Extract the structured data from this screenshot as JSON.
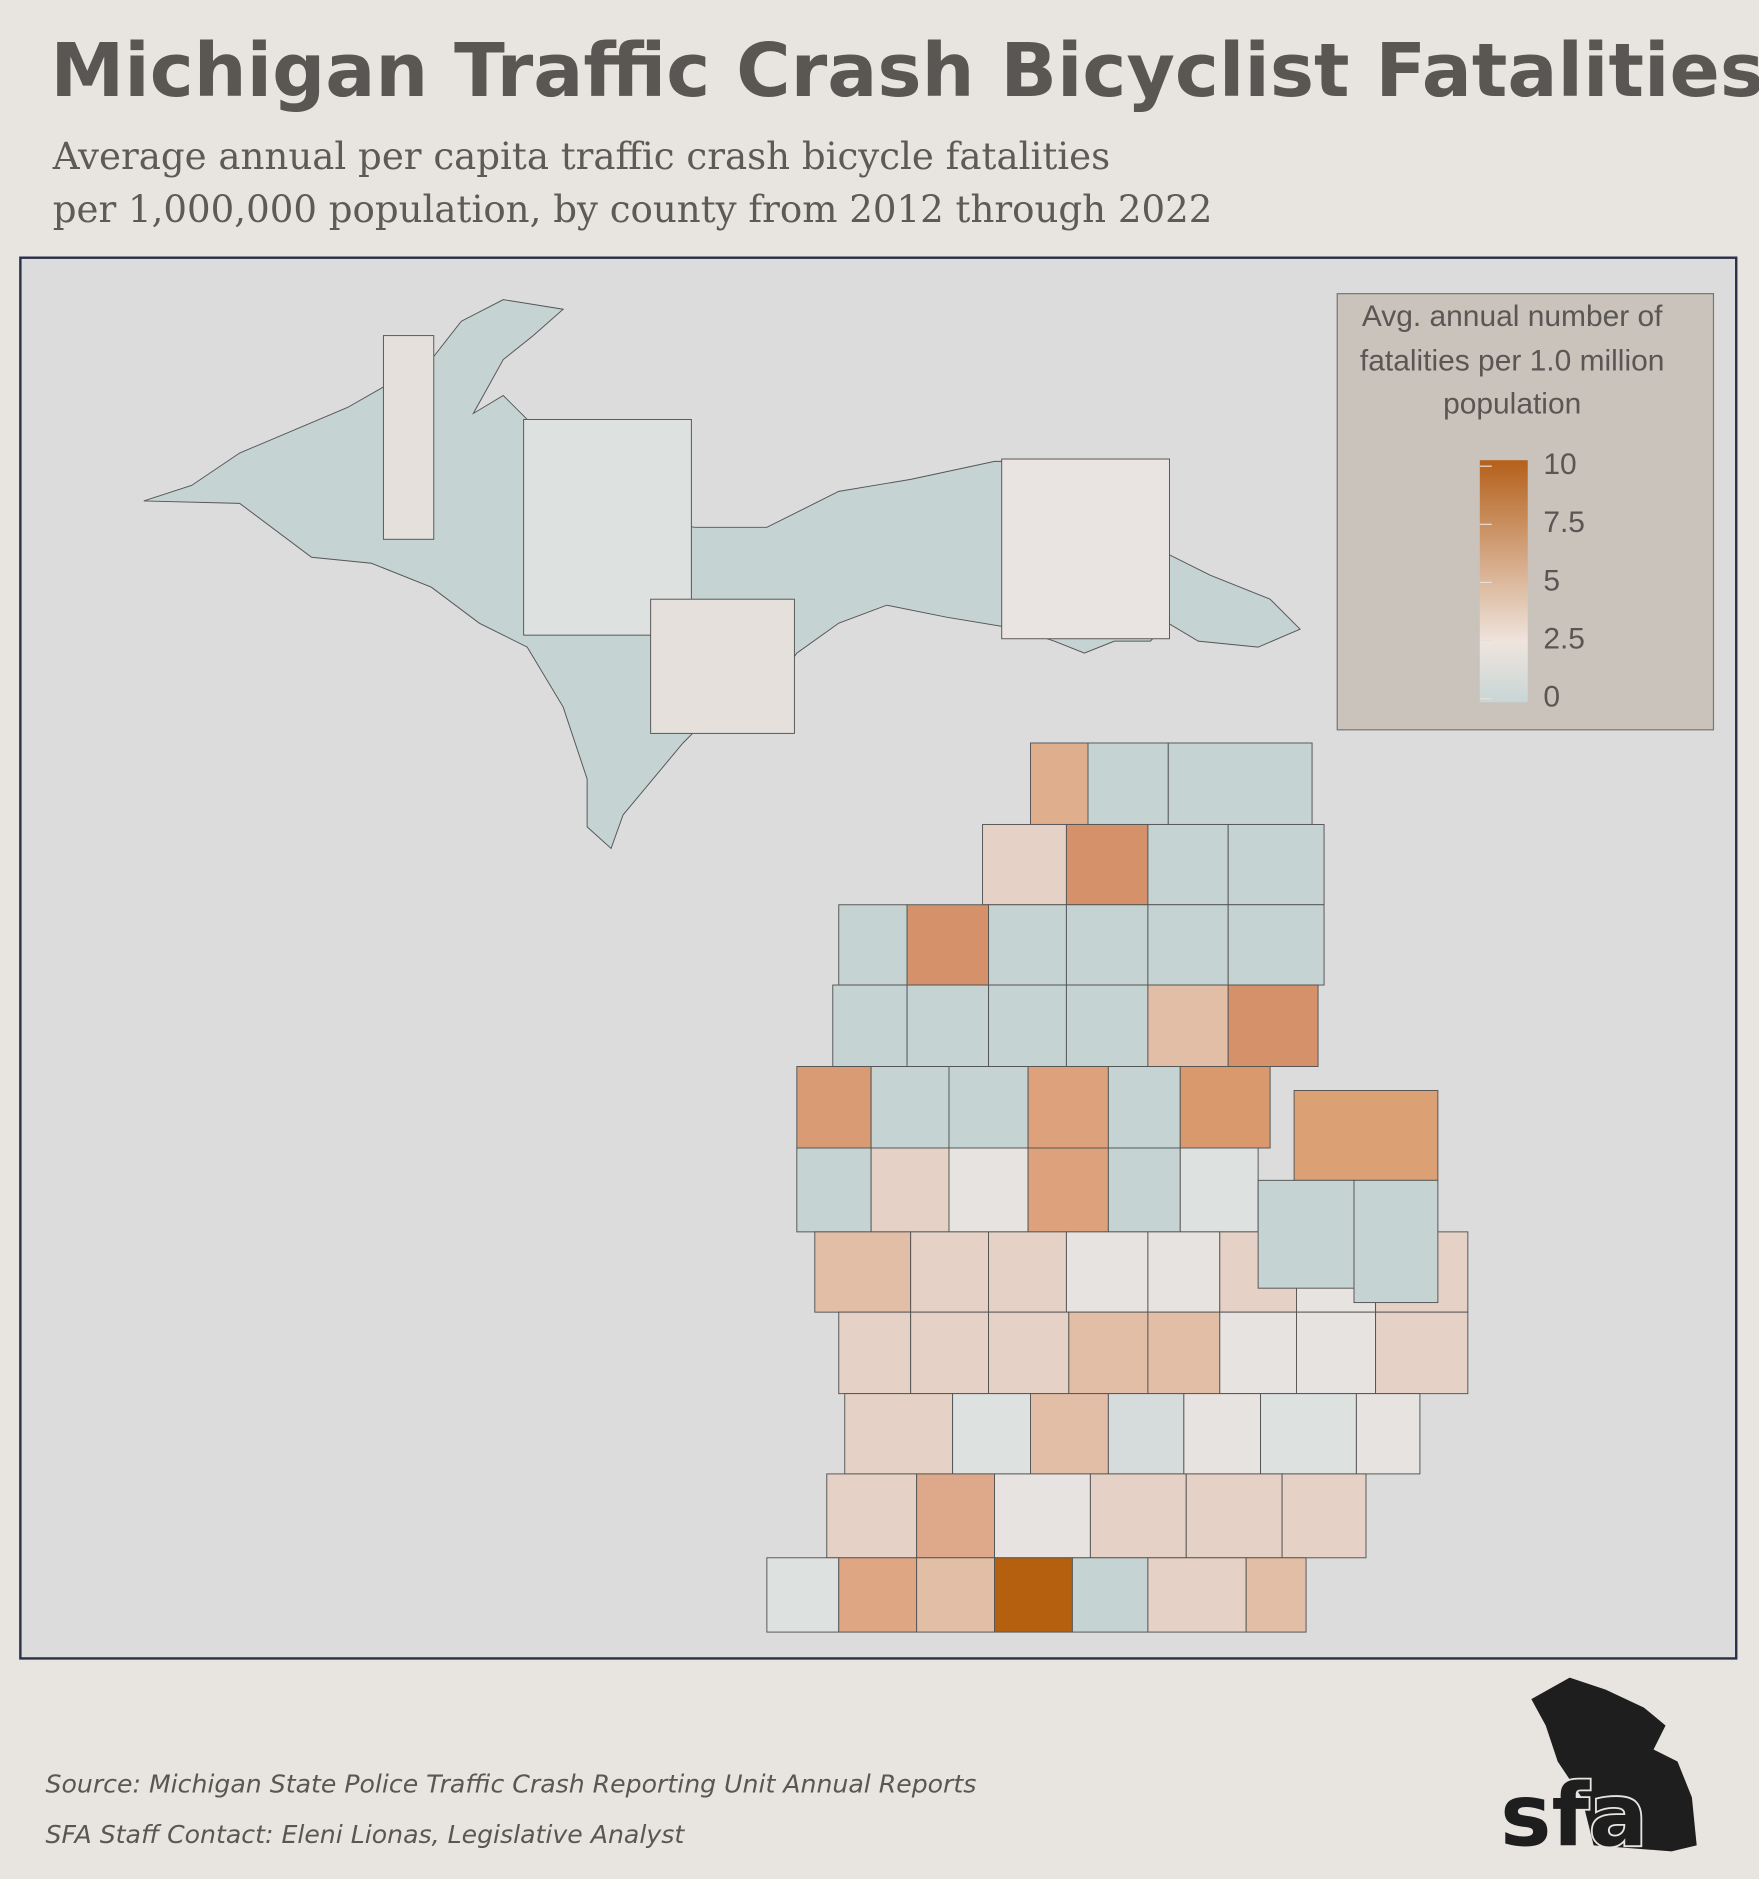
{
  "title": "Michigan Traffic Crash Bicyclist Fatalities",
  "subtitle": [
    "Average annual per capita traffic crash bicycle fatalities",
    "per 1,000,000 population, by county from 2012 through 2022"
  ],
  "legend": {
    "title": [
      "Avg. annual number of",
      "fatalities per 1.0 million",
      "population"
    ],
    "lim": [
      0,
      10
    ],
    "ticks": [
      0,
      2.5,
      5,
      7.5,
      10
    ],
    "colors": [
      "#c8d6d6",
      "#efe4dd",
      "#b5601a"
    ]
  },
  "source": "Source: Michigan State Police Traffic Crash Reporting Unit Annual Reports",
  "contact": "SFA Staff Contact: Eleni Lionas, Legislative Analyst",
  "logo": "sfa"
}
